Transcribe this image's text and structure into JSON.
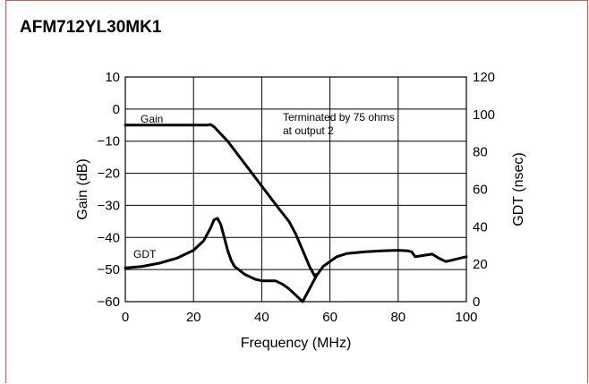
{
  "chart_data": {
    "type": "line",
    "title": "AFM712YL30MK1",
    "xlabel": "Frequency (MHz)",
    "ylabel_left": "Gain (dB)",
    "ylabel_right": "GDT (nsec)",
    "xlim": [
      0,
      100
    ],
    "ylim_left": [
      -60,
      10
    ],
    "ylim_right": [
      0,
      120
    ],
    "x_ticks": [
      "0",
      "20",
      "40",
      "60",
      "80",
      "100"
    ],
    "y_left_ticks": [
      "10",
      "0",
      "−10",
      "−20",
      "−30",
      "−40",
      "−50",
      "−60"
    ],
    "y_right_ticks": [
      "120",
      "100",
      "80",
      "60",
      "40",
      "20",
      "0"
    ],
    "grid": true,
    "annotation": [
      "Terminated by 75 ohms",
      "at output 2"
    ],
    "series": [
      {
        "name": "Gain",
        "axis": "left",
        "x": [
          0,
          10,
          20,
          24,
          25,
          26,
          30,
          35,
          40,
          45,
          48,
          50,
          52,
          54,
          55,
          55.5,
          56
        ],
        "values": [
          -5,
          -5,
          -5,
          -5,
          -4.8,
          -5.5,
          -10,
          -17,
          -24,
          -31,
          -35,
          -39,
          -44,
          -49,
          -51,
          -52,
          -51.5
        ]
      },
      {
        "name": "GDT",
        "axis": "left",
        "x": [
          0,
          5,
          10,
          15,
          20,
          23,
          25,
          26,
          27,
          28,
          29,
          30,
          31,
          32,
          35,
          38,
          40,
          44,
          46,
          48,
          50,
          52,
          56,
          58,
          62,
          65,
          70,
          75,
          80,
          83,
          84,
          85,
          88,
          90,
          92,
          94,
          96,
          98,
          100
        ],
        "values": [
          -49.5,
          -49,
          -48,
          -46.5,
          -44,
          -41,
          -37,
          -34.5,
          -34,
          -36,
          -40,
          -44,
          -47,
          -49,
          -51.5,
          -53,
          -53.5,
          -53.5,
          -54.5,
          -56,
          -58,
          -60,
          -52,
          -49,
          -46,
          -45,
          -44.5,
          -44.2,
          -44,
          -44.2,
          -44.5,
          -46,
          -45.5,
          -45.2,
          -46.5,
          -47.5,
          -47,
          -46.5,
          -46
        ]
      }
    ]
  }
}
